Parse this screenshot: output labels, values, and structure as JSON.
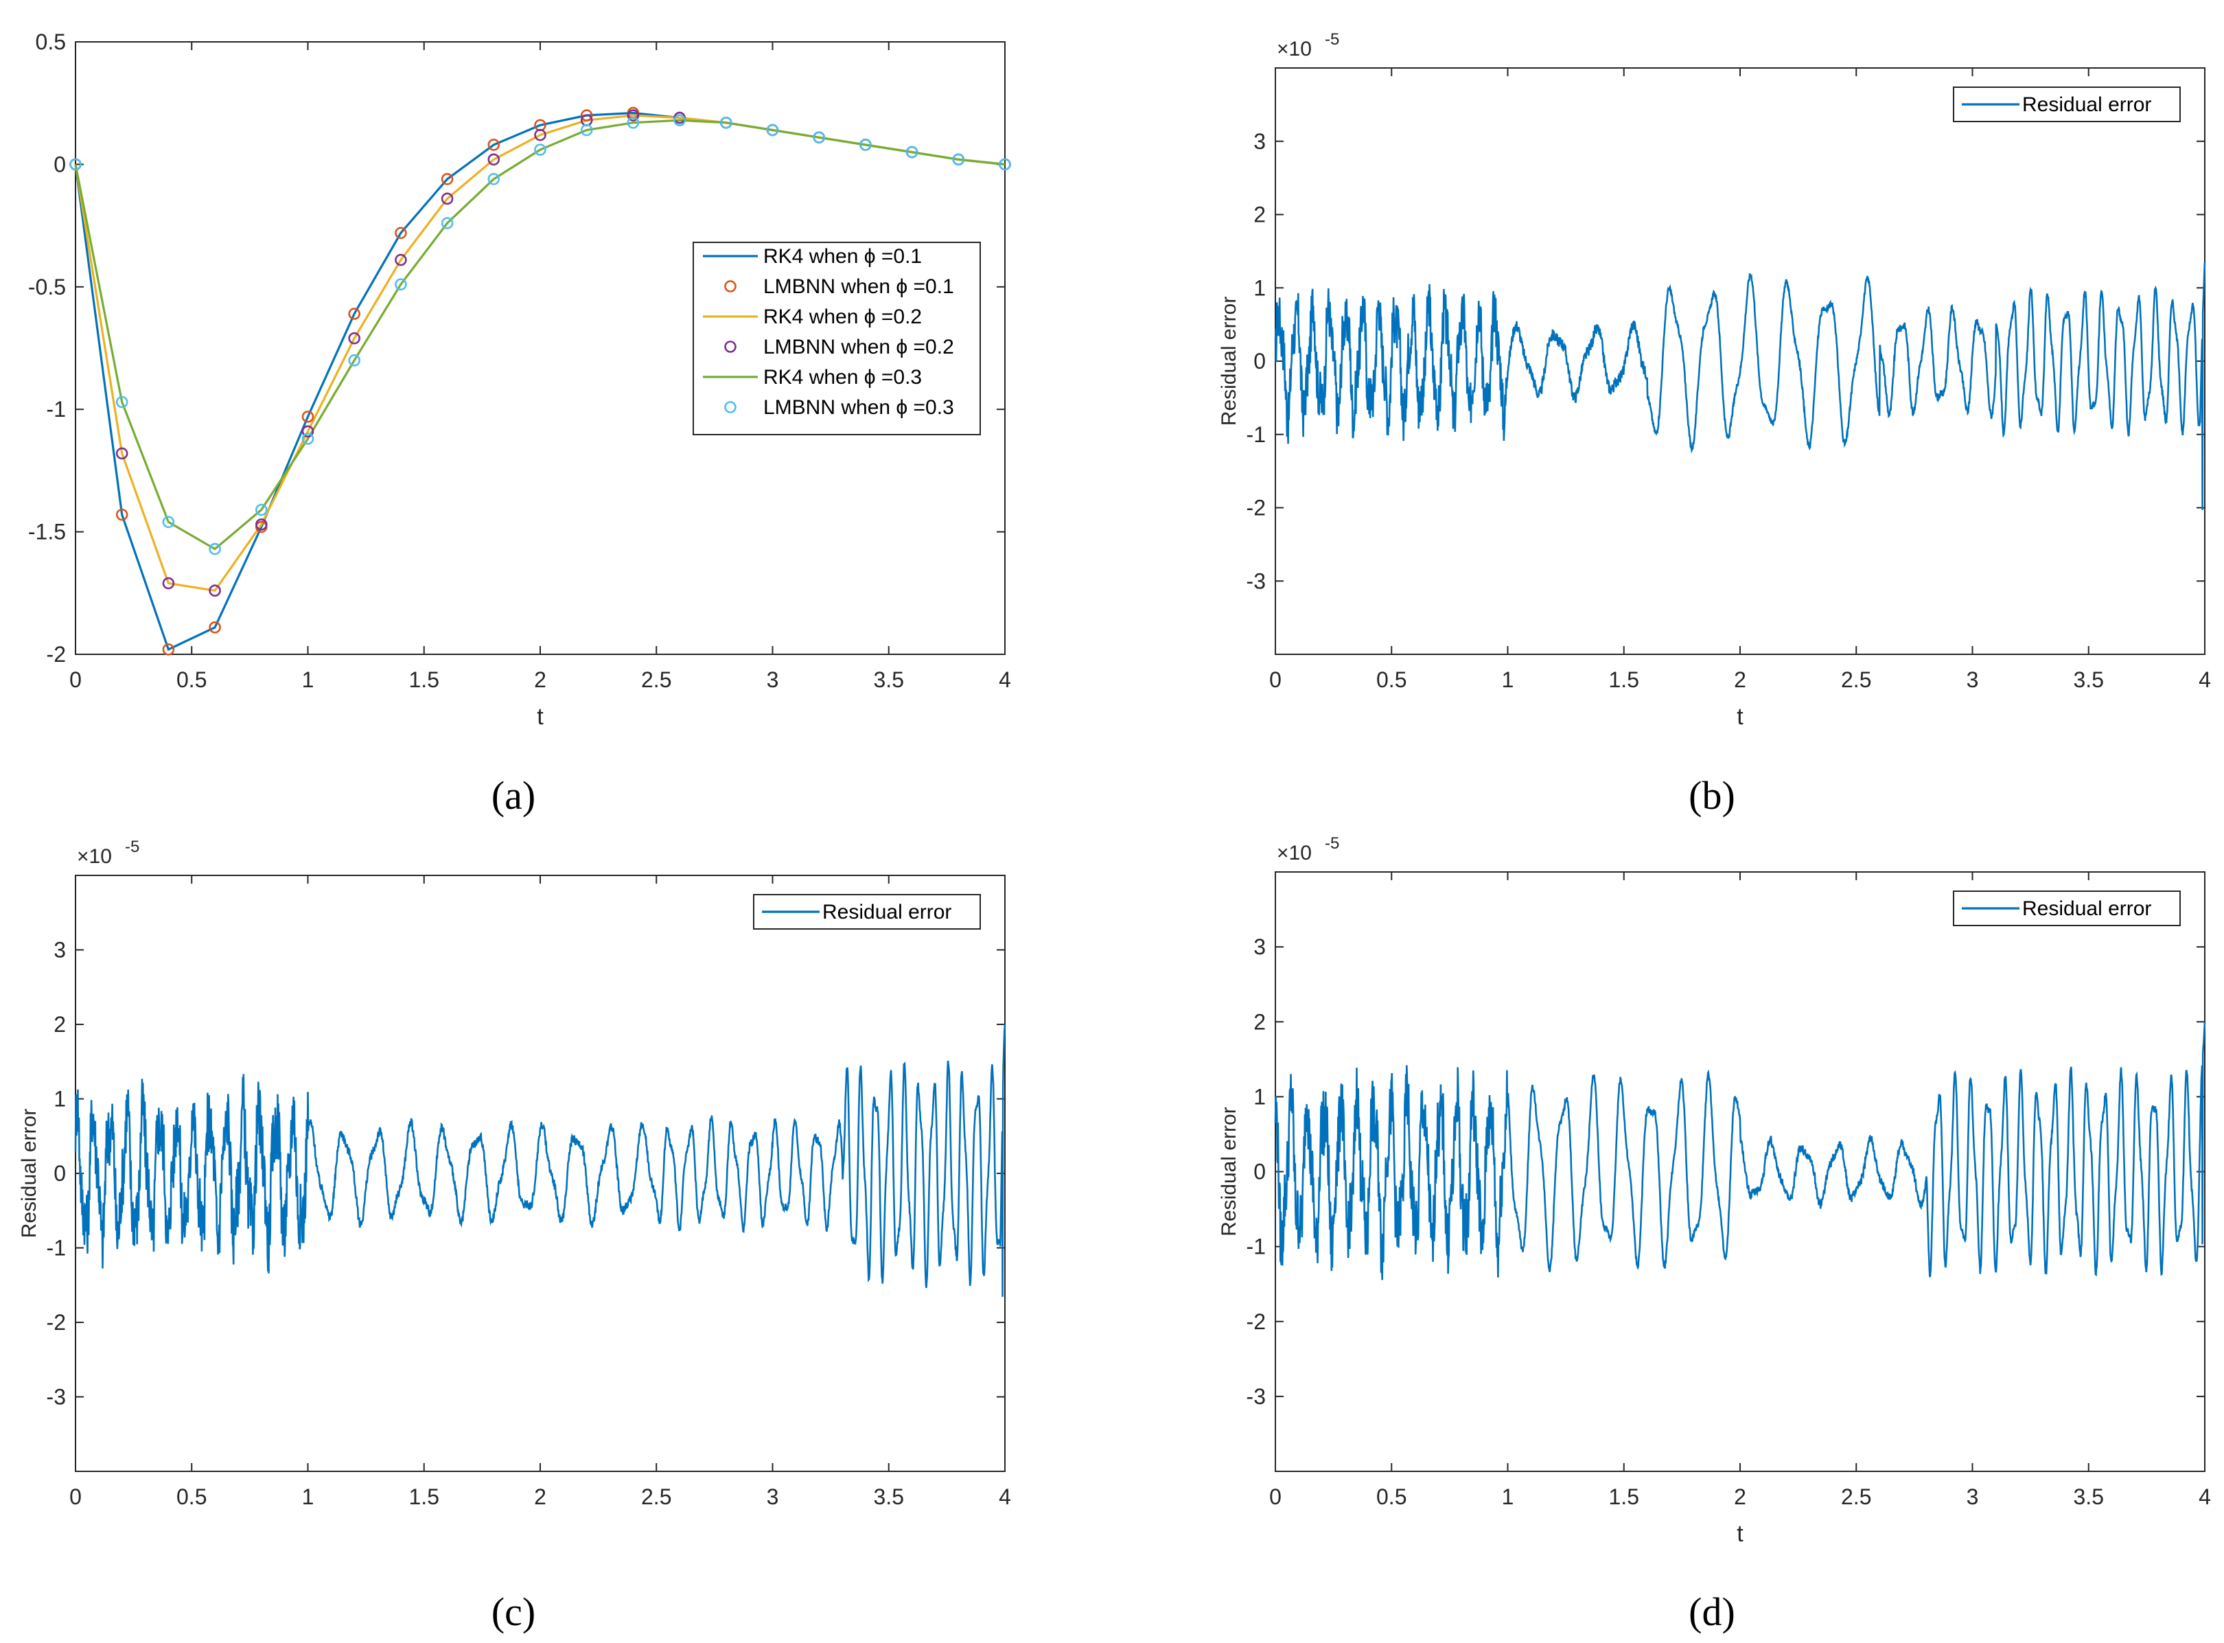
{
  "figure": {
    "panel_labels": [
      "(a)",
      "(b)",
      "(c)",
      "(d)"
    ],
    "exponent_label": "×10",
    "exponent_power": "-5"
  },
  "chart_data": [
    {
      "type": "line",
      "panel": "(a)",
      "xlabel": "t",
      "ylabel": "",
      "xlim": [
        0,
        4
      ],
      "ylim": [
        -2,
        0.5
      ],
      "xticks": [
        0,
        0.5,
        1,
        1.5,
        2,
        2.5,
        3,
        3.5,
        4
      ],
      "xtick_labels": [
        "0",
        "0.5",
        "1",
        "1.5",
        "2",
        "2.5",
        "3",
        "3.5",
        "4"
      ],
      "yticks": [
        -2,
        -1.5,
        -1,
        -0.5,
        0,
        0.5
      ],
      "ytick_labels": [
        "-2",
        "-1.5",
        "-1",
        "-0.5",
        "0",
        "0.5"
      ],
      "legend_position": "center-right",
      "x": [
        0,
        0.2,
        0.4,
        0.6,
        0.8,
        1.0,
        1.2,
        1.4,
        1.6,
        1.8,
        2.0,
        2.2,
        2.4,
        2.6,
        2.8,
        3.0,
        3.2,
        3.4,
        3.6,
        3.8,
        4.0
      ],
      "series": [
        {
          "name": "RK4 when ϕ =0.1",
          "style": "line",
          "color": "#0072BD",
          "values": [
            0,
            -1.43,
            -1.98,
            -1.89,
            -1.48,
            -1.03,
            -0.61,
            -0.28,
            -0.06,
            0.08,
            0.16,
            0.2,
            0.21,
            0.19,
            0.17,
            0.14,
            0.11,
            0.08,
            0.05,
            0.02,
            0
          ]
        },
        {
          "name": "LMBNN when ϕ =0.1",
          "style": "marker",
          "color": "#D95319",
          "values": [
            0,
            -1.43,
            -1.98,
            -1.89,
            -1.48,
            -1.03,
            -0.61,
            -0.28,
            -0.06,
            0.08,
            0.16,
            0.2,
            0.21,
            0.19,
            0.17,
            0.14,
            0.11,
            0.08,
            0.05,
            0.02,
            0
          ]
        },
        {
          "name": "RK4 when ϕ =0.2",
          "style": "line",
          "color": "#EDB120",
          "values": [
            0,
            -1.18,
            -1.71,
            -1.74,
            -1.47,
            -1.09,
            -0.71,
            -0.39,
            -0.14,
            0.02,
            0.12,
            0.18,
            0.2,
            0.19,
            0.17,
            0.14,
            0.11,
            0.08,
            0.05,
            0.02,
            0
          ]
        },
        {
          "name": "LMBNN when ϕ =0.2",
          "style": "marker",
          "color": "#7E2F8E",
          "values": [
            0,
            -1.18,
            -1.71,
            -1.74,
            -1.47,
            -1.09,
            -0.71,
            -0.39,
            -0.14,
            0.02,
            0.12,
            0.18,
            0.2,
            0.19,
            0.17,
            0.14,
            0.11,
            0.08,
            0.05,
            0.02,
            0
          ]
        },
        {
          "name": "RK4 when ϕ =0.3",
          "style": "line",
          "color": "#77AC30",
          "values": [
            0,
            -0.97,
            -1.46,
            -1.57,
            -1.41,
            -1.12,
            -0.8,
            -0.49,
            -0.24,
            -0.06,
            0.06,
            0.14,
            0.17,
            0.18,
            0.17,
            0.14,
            0.11,
            0.08,
            0.05,
            0.02,
            0
          ]
        },
        {
          "name": "LMBNN when ϕ =0.3",
          "style": "marker",
          "color": "#4DBEEE",
          "values": [
            0,
            -0.97,
            -1.46,
            -1.57,
            -1.41,
            -1.12,
            -0.8,
            -0.49,
            -0.24,
            -0.06,
            0.06,
            0.14,
            0.17,
            0.18,
            0.17,
            0.14,
            0.11,
            0.08,
            0.05,
            0.02,
            0
          ]
        }
      ]
    },
    {
      "type": "line",
      "panel": "(b)",
      "xlabel": "t",
      "ylabel": "Residual error",
      "y_scale": "1e-5",
      "xlim": [
        0,
        4
      ],
      "ylim": [
        -4,
        4
      ],
      "xticks": [
        0,
        0.5,
        1,
        1.5,
        2,
        2.5,
        3,
        3.5,
        4
      ],
      "xtick_labels": [
        "0",
        "0.5",
        "1",
        "1.5",
        "2",
        "2.5",
        "3",
        "3.5",
        "4"
      ],
      "yticks": [
        -3,
        -2,
        -1,
        0,
        1,
        2,
        3
      ],
      "ytick_labels": [
        "-3",
        "-2",
        "-1",
        "0",
        "1",
        "2",
        "3"
      ],
      "legend_position": "top-right",
      "series": [
        {
          "name": "Residual error",
          "color": "#0072BD",
          "segments": [
            {
              "t": [
                0,
                1.0
              ],
              "amp": 0.65,
              "freq": 14,
              "noise": 0.35
            },
            {
              "t": [
                1.0,
                1.6
              ],
              "amp": 0.4,
              "freq": 6,
              "noise": 0.08
            },
            {
              "t": [
                1.6,
                2.6
              ],
              "amp": 0.95,
              "freq": 6,
              "noise": 0.04
            },
            {
              "t": [
                2.6,
                3.1
              ],
              "amp": 0.6,
              "freq": 9,
              "noise": 0.05
            },
            {
              "t": [
                3.1,
                4.0
              ],
              "amp": 0.8,
              "freq": 13,
              "noise": 0.04
            }
          ],
          "end_value": 1.35
        }
      ]
    },
    {
      "type": "line",
      "panel": "(c)",
      "xlabel": "",
      "ylabel": "Residual error",
      "y_scale": "1e-5",
      "xlim": [
        0,
        4
      ],
      "ylim": [
        -4,
        4
      ],
      "xticks": [
        0,
        0.5,
        1,
        1.5,
        2,
        2.5,
        3,
        3.5,
        4
      ],
      "xtick_labels": [
        "0",
        "0.5",
        "1",
        "1.5",
        "2",
        "2.5",
        "3",
        "3.5",
        "4"
      ],
      "yticks": [
        -3,
        -2,
        -1,
        0,
        1,
        2,
        3
      ],
      "ytick_labels": [
        "-3",
        "-2",
        "-1",
        "0",
        "1",
        "2",
        "3"
      ],
      "legend_position": "top-right",
      "series": [
        {
          "name": "Residual error",
          "color": "#0072BD",
          "segments": [
            {
              "t": [
                0,
                1.0
              ],
              "amp": 0.75,
              "freq": 14,
              "noise": 0.45
            },
            {
              "t": [
                1.0,
                2.5
              ],
              "amp": 0.55,
              "freq": 7,
              "noise": 0.06
            },
            {
              "t": [
                2.5,
                3.3
              ],
              "amp": 0.6,
              "freq": 11,
              "noise": 0.05
            },
            {
              "t": [
                3.3,
                4.0
              ],
              "amp": 1.2,
              "freq": 16,
              "noise": 0.05
            }
          ],
          "end_value": 2.0
        }
      ]
    },
    {
      "type": "line",
      "panel": "(d)",
      "xlabel": "t",
      "ylabel": "Residual error",
      "y_scale": "1e-5",
      "xlim": [
        0,
        4
      ],
      "ylim": [
        -4,
        4
      ],
      "xticks": [
        0,
        0.5,
        1,
        1.5,
        2,
        2.5,
        3,
        3.5,
        4
      ],
      "xtick_labels": [
        "0",
        "0.5",
        "1",
        "1.5",
        "2",
        "2.5",
        "3",
        "3.5",
        "4"
      ],
      "yticks": [
        -3,
        -2,
        -1,
        0,
        1,
        2,
        3
      ],
      "ytick_labels": [
        "-3",
        "-2",
        "-1",
        "0",
        "1",
        "2",
        "3"
      ],
      "legend_position": "top-right",
      "series": [
        {
          "name": "Residual error",
          "color": "#0072BD",
          "segments": [
            {
              "t": [
                0,
                1.0
              ],
              "amp": 0.85,
              "freq": 14,
              "noise": 0.45
            },
            {
              "t": [
                1.0,
                2.0
              ],
              "amp": 1.05,
              "freq": 8,
              "noise": 0.04
            },
            {
              "t": [
                2.0,
                2.8
              ],
              "amp": 0.35,
              "freq": 7,
              "noise": 0.06
            },
            {
              "t": [
                2.8,
                4.0
              ],
              "amp": 1.1,
              "freq": 14,
              "noise": 0.05
            }
          ],
          "end_value": 2.0
        }
      ]
    }
  ]
}
